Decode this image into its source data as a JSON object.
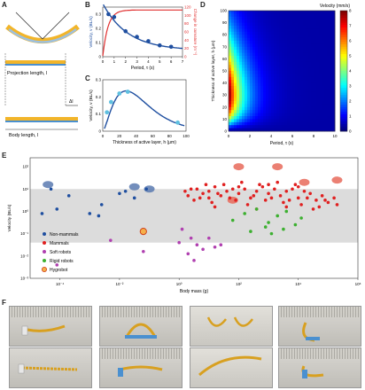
{
  "panels": {
    "a": "A",
    "b": "B",
    "c": "C",
    "d": "D",
    "e": "E",
    "f": "F"
  },
  "panel_a": {
    "projection_label": "Projection length, l",
    "body_label": "Body length, l",
    "delta_l": "Δl"
  },
  "panel_d": {
    "colorbar_title": "Velocity (mm/s)"
  },
  "panel_e_legend": [
    {
      "label": "Non-mammals",
      "color": "#1f4fa0"
    },
    {
      "label": "Mammals",
      "color": "#e02020"
    },
    {
      "label": "Soft robots",
      "color": "#b040b0"
    },
    {
      "label": "Rigid robots",
      "color": "#3cb030"
    },
    {
      "label": "Hygrobot",
      "color": "#f08020"
    }
  ],
  "chart_data": [
    {
      "type": "scatter",
      "panel": "B",
      "xlabel": "Period, τ (s)",
      "ylabel": "Velocity, v (BL/s)",
      "ylabel_right": "Change in curvature (m⁻¹)",
      "x_ticks": [
        "0",
        "1",
        "2",
        "3",
        "4",
        "5",
        "6",
        "7"
      ],
      "y_ticks": [
        "0",
        "0.1",
        "0.2",
        "0.3"
      ],
      "y_right_ticks": [
        "0",
        "20",
        "40",
        "60",
        "80",
        "100",
        "120"
      ],
      "xlim": [
        0,
        7
      ],
      "ylim": [
        0,
        0.35
      ],
      "ylim_right": [
        0,
        120
      ],
      "series": [
        {
          "x": [
            0.5,
            1,
            2,
            3,
            4,
            5,
            6
          ],
          "y": [
            0.3,
            0.28,
            0.18,
            0.14,
            0.11,
            0.08,
            0.07
          ],
          "color": "#1f4fa0"
        },
        {
          "x": [
            0,
            0.5,
            1,
            2,
            3,
            4,
            5,
            6,
            7
          ],
          "y": [
            40,
            95,
            105,
            110,
            112,
            112,
            113,
            113,
            113
          ],
          "color": "#e03030"
        }
      ]
    },
    {
      "type": "scatter",
      "panel": "C",
      "xlabel": "Thickness of active layer, h (μm)",
      "ylabel": "Velocity, v (BL/s)",
      "x_ticks": [
        "0",
        "20",
        "40",
        "60",
        "80",
        "100"
      ],
      "y_ticks": [
        "0",
        "0.1",
        "0.2",
        "0.3"
      ],
      "xlim": [
        0,
        100
      ],
      "ylim": [
        0,
        0.3
      ],
      "series": [
        {
          "x": [
            5,
            10,
            20,
            30,
            90
          ],
          "y": [
            0.11,
            0.17,
            0.22,
            0.23,
            0.05
          ],
          "color": "#5fc0e0"
        }
      ]
    },
    {
      "type": "heatmap",
      "panel": "D",
      "xlabel": "Period, τ (s)",
      "ylabel": "Thickness of active layer, h (μm)",
      "x_ticks": [
        "0",
        "2",
        "4",
        "6",
        "8",
        "10"
      ],
      "y_ticks": [
        "0",
        "10",
        "20",
        "30",
        "40",
        "50",
        "60",
        "70",
        "80",
        "90",
        "100"
      ],
      "colorbar_ticks": [
        "0",
        "1",
        "2",
        "3",
        "4",
        "5",
        "6",
        "7",
        "8"
      ],
      "xlim": [
        0,
        10
      ],
      "ylim": [
        0,
        100
      ],
      "zlim": [
        0,
        8
      ]
    },
    {
      "type": "scatter",
      "panel": "E",
      "xlabel": "Body mass (g)",
      "ylabel": "Velocity (BL/s)",
      "x_ticks": [
        "10⁻⁴",
        "10⁻²",
        "10⁰",
        "10²",
        "10⁴",
        "10⁶"
      ],
      "y_ticks": [
        "10⁻³",
        "10⁻²",
        "10⁻¹",
        "10⁰",
        "10¹",
        "10²"
      ],
      "xlog": [
        -5,
        6
      ],
      "ylog": [
        -3,
        2.4
      ]
    }
  ],
  "panel_e_points": {
    "non_mammals": [
      [
        -4.3,
        1.0
      ],
      [
        -4.1,
        0.1
      ],
      [
        -3.7,
        0.7
      ],
      [
        -3.0,
        -0.1
      ],
      [
        -2.7,
        -0.2
      ],
      [
        -2.0,
        0.8
      ],
      [
        -1.8,
        0.9
      ],
      [
        -1.5,
        0.6
      ],
      [
        -1.1,
        1.0
      ],
      [
        -2.6,
        0.3
      ],
      [
        -4.6,
        -0.1
      ]
    ],
    "mammals": [
      [
        0.2,
        0.9
      ],
      [
        0.4,
        1.0
      ],
      [
        0.6,
        1.0
      ],
      [
        0.8,
        0.8
      ],
      [
        1.0,
        0.9
      ],
      [
        1.2,
        1.1
      ],
      [
        1.4,
        0.7
      ],
      [
        1.6,
        0.9
      ],
      [
        1.8,
        1.0
      ],
      [
        2.0,
        0.8
      ],
      [
        2.2,
        1.0
      ],
      [
        2.4,
        0.6
      ],
      [
        2.6,
        0.9
      ],
      [
        2.8,
        1.1
      ],
      [
        3.0,
        0.8
      ],
      [
        3.2,
        1.0
      ],
      [
        3.4,
        0.7
      ],
      [
        3.6,
        0.9
      ],
      [
        3.8,
        1.0
      ],
      [
        4.0,
        0.6
      ],
      [
        4.2,
        0.9
      ],
      [
        4.4,
        0.8
      ],
      [
        4.6,
        0.5
      ],
      [
        4.8,
        0.7
      ],
      [
        5.0,
        0.4
      ],
      [
        5.2,
        0.6
      ],
      [
        0.5,
        0.5
      ],
      [
        1.1,
        0.4
      ],
      [
        1.7,
        0.6
      ],
      [
        2.3,
        0.3
      ],
      [
        2.9,
        0.5
      ],
      [
        3.5,
        0.4
      ],
      [
        4.1,
        0.3
      ],
      [
        4.7,
        0.2
      ],
      [
        0.9,
        1.2
      ],
      [
        1.5,
        1.2
      ],
      [
        2.1,
        1.3
      ],
      [
        2.7,
        1.2
      ],
      [
        3.3,
        1.3
      ],
      [
        3.9,
        1.2
      ],
      [
        0.3,
        0.7
      ],
      [
        0.7,
        0.6
      ],
      [
        1.3,
        0.8
      ],
      [
        1.9,
        0.5
      ],
      [
        2.5,
        0.7
      ],
      [
        3.1,
        0.6
      ],
      [
        3.7,
        0.5
      ],
      [
        4.3,
        0.6
      ],
      [
        4.9,
        0.5
      ],
      [
        5.3,
        0.3
      ],
      [
        2.0,
        1.1
      ],
      [
        3.0,
        1.2
      ],
      [
        4.0,
        1.1
      ],
      [
        1.0,
        0.6
      ],
      [
        3.6,
        0.2
      ],
      [
        4.5,
        0.1
      ],
      [
        1.2,
        0.2
      ],
      [
        2.6,
        0.1
      ]
    ],
    "soft_robots": [
      [
        -4.1,
        -2.4
      ],
      [
        -2.3,
        -1.3
      ],
      [
        -1.2,
        -1.8
      ],
      [
        0.1,
        -0.8
      ],
      [
        0.4,
        -1.2
      ],
      [
        0.6,
        -1.5
      ],
      [
        0.8,
        -1.7
      ],
      [
        1.0,
        -1.2
      ],
      [
        1.2,
        -1.6
      ],
      [
        1.4,
        -1.5
      ],
      [
        0.0,
        -1.4
      ],
      [
        0.5,
        -2.2
      ],
      [
        0.3,
        -1.9
      ]
    ],
    "rigid_robots": [
      [
        1.8,
        -0.4
      ],
      [
        2.2,
        -0.1
      ],
      [
        2.6,
        0.1
      ],
      [
        3.0,
        -0.5
      ],
      [
        3.3,
        -0.2
      ],
      [
        3.6,
        0.0
      ],
      [
        2.4,
        -0.9
      ],
      [
        3.1,
        -1.0
      ],
      [
        3.9,
        -0.6
      ],
      [
        4.1,
        -0.3
      ],
      [
        2.9,
        -0.7
      ],
      [
        3.5,
        -0.8
      ]
    ],
    "hygrobot": [
      [
        -1.2,
        -0.9
      ]
    ]
  }
}
